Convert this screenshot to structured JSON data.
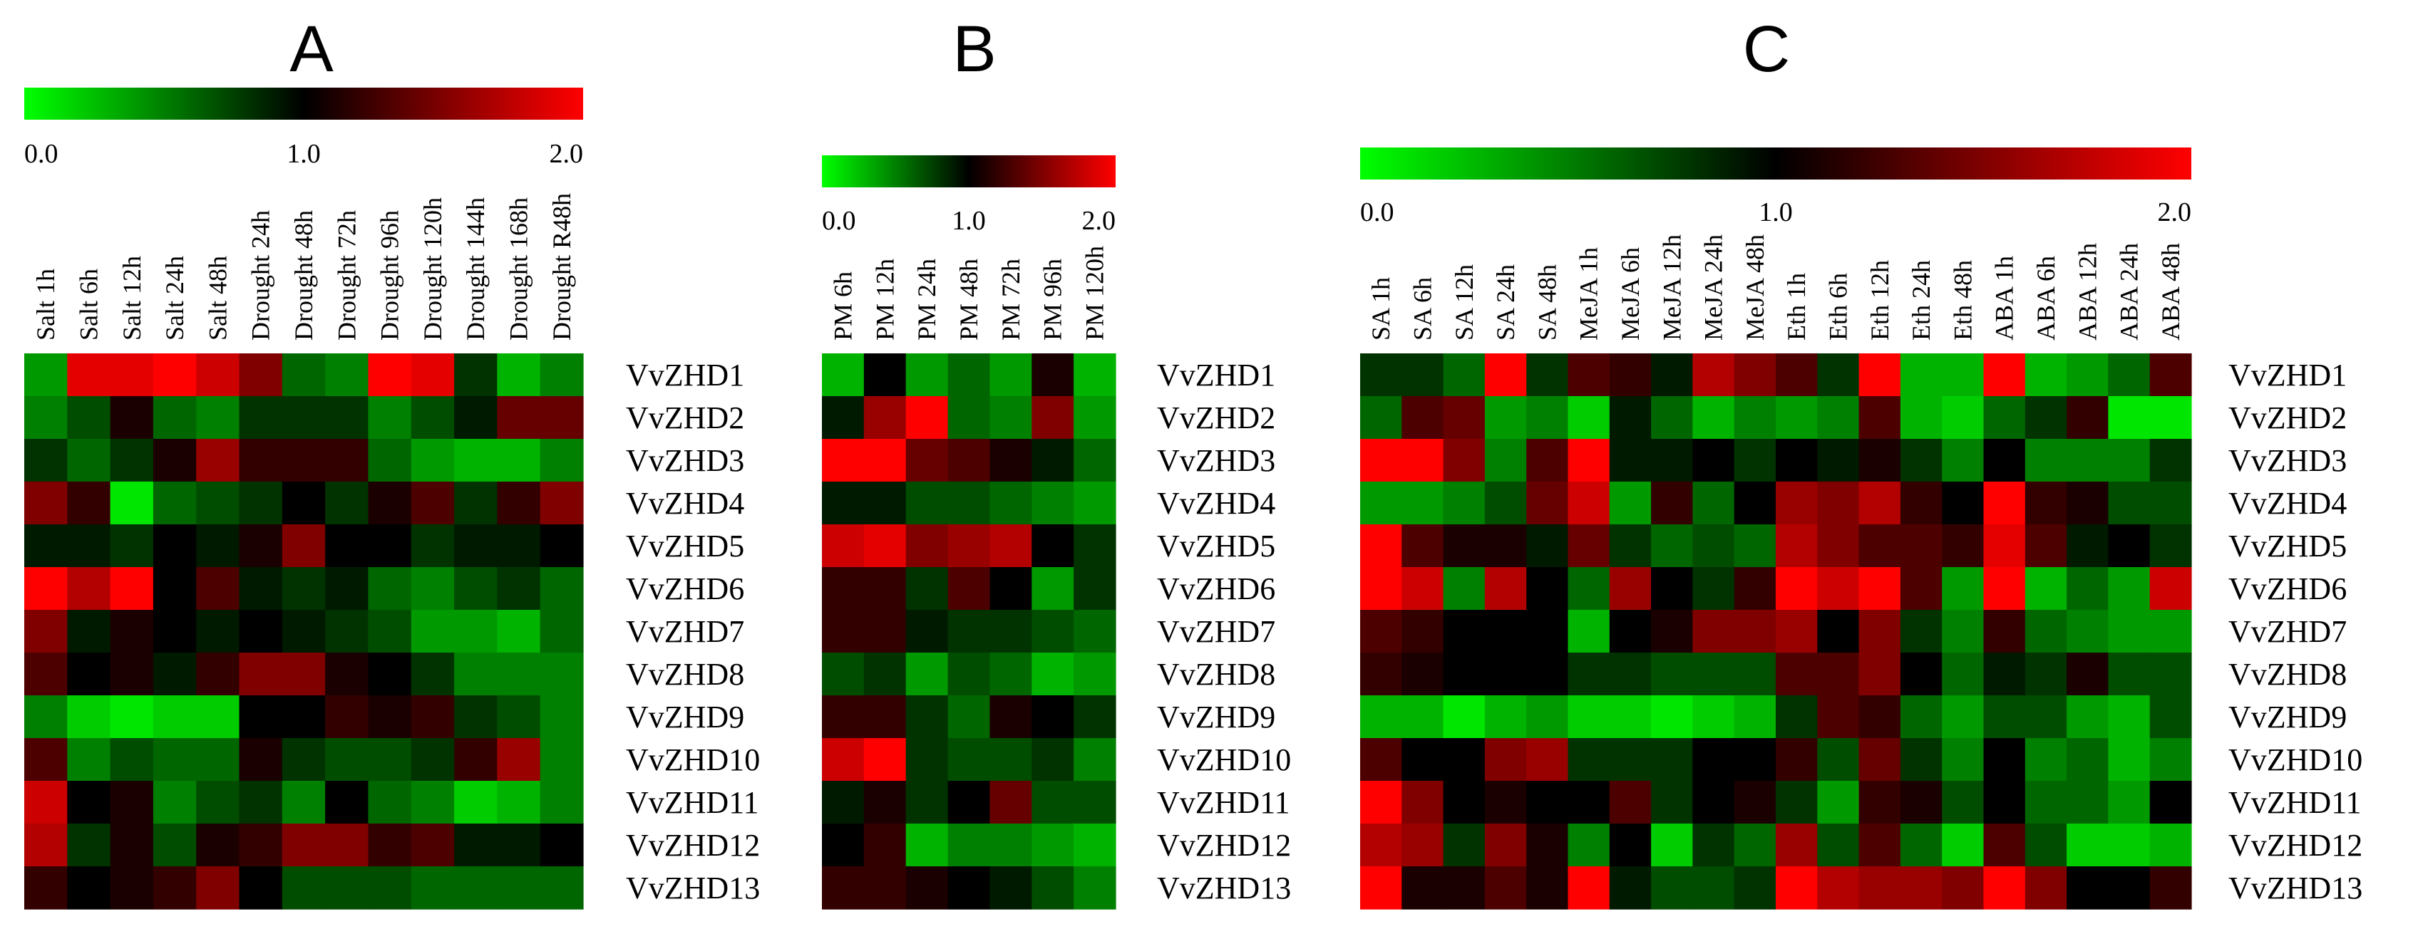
{
  "chart_data": [
    {
      "type": "heatmap",
      "title": "A",
      "colorbar": {
        "min": 0.0,
        "mid": 1.0,
        "max": 2.0,
        "ticks": [
          "0.0",
          "1.0",
          "2.0"
        ],
        "colors": [
          "#00ff00",
          "#000000",
          "#ff0000"
        ]
      },
      "x": [
        "Salt 1h",
        "Salt 6h",
        "Salt 12h",
        "Salt 24h",
        "Salt 48h",
        "Drought 24h",
        "Drought 48h",
        "Drought 72h",
        "Drought 96h",
        "Drought 120h",
        "Drought 144h",
        "Drought 168h",
        "Drought R48h"
      ],
      "y": [
        "VvZHD1",
        "VvZHD2",
        "VvZHD3",
        "VvZHD4",
        "VvZHD5",
        "VvZHD6",
        "VvZHD7",
        "VvZHD8",
        "VvZHD9",
        "VvZHD10",
        "VvZHD11",
        "VvZHD12",
        "VvZHD13"
      ],
      "values": [
        [
          0.4,
          1.9,
          1.9,
          2.0,
          1.8,
          1.5,
          0.6,
          0.5,
          2.0,
          1.9,
          0.8,
          0.3,
          0.5
        ],
        [
          0.5,
          0.7,
          1.1,
          0.6,
          0.5,
          0.8,
          0.8,
          0.8,
          0.5,
          0.7,
          0.9,
          1.4,
          1.4
        ],
        [
          0.8,
          0.6,
          0.8,
          1.1,
          1.6,
          1.2,
          1.2,
          1.2,
          0.6,
          0.4,
          0.3,
          0.3,
          0.5
        ],
        [
          1.5,
          1.2,
          0.1,
          0.6,
          0.7,
          0.8,
          1.0,
          0.8,
          1.1,
          1.3,
          0.8,
          1.2,
          1.5
        ],
        [
          0.9,
          0.9,
          0.8,
          1.0,
          0.9,
          1.1,
          1.5,
          1.0,
          1.0,
          0.8,
          0.9,
          0.9,
          1.0
        ],
        [
          2.0,
          1.7,
          2.0,
          1.0,
          1.3,
          0.9,
          0.8,
          0.9,
          0.6,
          0.5,
          0.7,
          0.8,
          0.6
        ],
        [
          1.5,
          0.9,
          1.1,
          1.0,
          0.9,
          1.0,
          0.9,
          0.8,
          0.7,
          0.4,
          0.4,
          0.3,
          0.6
        ],
        [
          1.3,
          1.0,
          1.1,
          0.9,
          1.2,
          1.5,
          1.5,
          1.1,
          1.0,
          0.8,
          0.5,
          0.5,
          0.5
        ],
        [
          0.5,
          0.2,
          0.1,
          0.2,
          0.2,
          1.0,
          1.0,
          1.2,
          1.1,
          1.2,
          0.8,
          0.7,
          0.5
        ],
        [
          1.3,
          0.5,
          0.7,
          0.6,
          0.6,
          1.1,
          0.8,
          0.7,
          0.7,
          0.8,
          1.2,
          1.6,
          0.5
        ],
        [
          1.8,
          1.0,
          1.1,
          0.5,
          0.7,
          0.8,
          0.5,
          1.0,
          0.6,
          0.5,
          0.2,
          0.3,
          0.5
        ],
        [
          1.7,
          0.8,
          1.1,
          0.7,
          1.1,
          1.2,
          1.5,
          1.5,
          1.2,
          1.3,
          0.9,
          0.9,
          1.0
        ],
        [
          1.2,
          1.0,
          1.1,
          1.2,
          1.5,
          1.0,
          0.7,
          0.7,
          0.7,
          0.6,
          0.6,
          0.6,
          0.6
        ]
      ]
    },
    {
      "type": "heatmap",
      "title": "B",
      "colorbar": {
        "min": 0.0,
        "mid": 1.0,
        "max": 2.0,
        "ticks": [
          "0.0",
          "1.0",
          "2.0"
        ],
        "colors": [
          "#00ff00",
          "#000000",
          "#ff0000"
        ]
      },
      "x": [
        "PM 6h",
        "PM 12h",
        "PM 24h",
        "PM 48h",
        "PM 72h",
        "PM 96h",
        "PM 120h"
      ],
      "y": [
        "VvZHD1",
        "VvZHD2",
        "VvZHD3",
        "VvZHD4",
        "VvZHD5",
        "VvZHD6",
        "VvZHD7",
        "VvZHD8",
        "VvZHD9",
        "VvZHD10",
        "VvZHD11",
        "VvZHD12",
        "VvZHD13"
      ],
      "values": [
        [
          0.3,
          1.0,
          0.4,
          0.6,
          0.4,
          1.1,
          0.3
        ],
        [
          0.9,
          1.6,
          2.0,
          0.6,
          0.5,
          1.5,
          0.4
        ],
        [
          2.0,
          2.0,
          1.4,
          1.3,
          1.1,
          0.9,
          0.6
        ],
        [
          0.9,
          0.9,
          0.7,
          0.7,
          0.6,
          0.5,
          0.4
        ],
        [
          1.8,
          1.9,
          1.5,
          1.6,
          1.7,
          1.0,
          0.8
        ],
        [
          1.2,
          1.2,
          0.8,
          1.3,
          1.0,
          0.4,
          0.8
        ],
        [
          1.2,
          1.2,
          0.9,
          0.8,
          0.8,
          0.7,
          0.6
        ],
        [
          0.7,
          0.8,
          0.4,
          0.7,
          0.6,
          0.3,
          0.4
        ],
        [
          1.2,
          1.2,
          0.8,
          0.6,
          1.1,
          1.0,
          0.8
        ],
        [
          1.8,
          2.0,
          0.8,
          0.7,
          0.7,
          0.8,
          0.5
        ],
        [
          0.9,
          1.1,
          0.8,
          1.0,
          1.4,
          0.7,
          0.7
        ],
        [
          1.0,
          1.2,
          0.3,
          0.5,
          0.5,
          0.4,
          0.3
        ],
        [
          1.2,
          1.2,
          1.1,
          1.0,
          0.9,
          0.7,
          0.5
        ]
      ]
    },
    {
      "type": "heatmap",
      "title": "C",
      "colorbar": {
        "min": 0.0,
        "mid": 1.0,
        "max": 2.0,
        "ticks": [
          "0.0",
          "1.0",
          "2.0"
        ],
        "colors": [
          "#00ff00",
          "#000000",
          "#ff0000"
        ]
      },
      "x": [
        "SA 1h",
        "SA 6h",
        "SA 12h",
        "SA 24h",
        "SA 48h",
        "MeJA 1h",
        "MeJA 6h",
        "MeJA 12h",
        "MeJA 24h",
        "MeJA 48h",
        "Eth 1h",
        "Eth 6h",
        "Eth 12h",
        "Eth 24h",
        "Eth 48h",
        "ABA 1h",
        "ABA 6h",
        "ABA 12h",
        "ABA 24h",
        "ABA 48h"
      ],
      "y": [
        "VvZHD1",
        "VvZHD2",
        "VvZHD3",
        "VvZHD4",
        "VvZHD5",
        "VvZHD6",
        "VvZHD7",
        "VvZHD8",
        "VvZHD9",
        "VvZHD10",
        "VvZHD11",
        "VvZHD12",
        "VvZHD13"
      ],
      "values": [
        [
          0.8,
          0.8,
          0.6,
          2.0,
          0.8,
          1.3,
          1.2,
          0.9,
          1.7,
          1.5,
          1.3,
          0.8,
          2.0,
          0.3,
          0.3,
          2.0,
          0.3,
          0.4,
          0.6,
          1.3
        ],
        [
          0.6,
          1.3,
          1.4,
          0.4,
          0.5,
          0.2,
          0.9,
          0.6,
          0.3,
          0.5,
          0.4,
          0.5,
          1.3,
          0.3,
          0.2,
          0.6,
          0.8,
          1.2,
          0.1,
          0.1
        ],
        [
          2.0,
          2.0,
          1.5,
          0.5,
          1.3,
          2.0,
          0.9,
          0.9,
          1.0,
          0.8,
          1.0,
          0.9,
          1.1,
          0.8,
          0.5,
          1.0,
          0.5,
          0.5,
          0.5,
          0.8
        ],
        [
          0.4,
          0.4,
          0.5,
          0.7,
          1.4,
          1.8,
          0.4,
          1.2,
          0.6,
          1.0,
          1.6,
          1.5,
          1.7,
          1.2,
          1.0,
          2.0,
          1.2,
          1.1,
          0.7,
          0.7
        ],
        [
          2.0,
          1.3,
          1.1,
          1.1,
          0.9,
          1.4,
          0.8,
          0.6,
          0.7,
          0.6,
          1.7,
          1.5,
          1.3,
          1.3,
          1.2,
          1.9,
          1.3,
          0.9,
          1.0,
          0.8
        ],
        [
          2.0,
          1.8,
          0.5,
          1.7,
          1.0,
          0.6,
          1.6,
          1.0,
          0.8,
          1.2,
          2.0,
          1.8,
          2.0,
          1.3,
          0.4,
          2.0,
          0.3,
          0.6,
          0.4,
          1.8
        ],
        [
          1.3,
          1.2,
          1.0,
          1.0,
          1.0,
          0.3,
          1.0,
          1.1,
          1.5,
          1.5,
          1.6,
          1.0,
          1.5,
          0.8,
          0.5,
          1.2,
          0.6,
          0.5,
          0.4,
          0.4
        ],
        [
          1.2,
          1.1,
          1.0,
          1.0,
          1.0,
          0.8,
          0.8,
          0.7,
          0.7,
          0.7,
          1.3,
          1.3,
          1.5,
          1.0,
          0.6,
          0.9,
          0.8,
          1.1,
          0.7,
          0.7
        ],
        [
          0.3,
          0.3,
          0.1,
          0.3,
          0.4,
          0.2,
          0.2,
          0.1,
          0.2,
          0.3,
          0.8,
          1.3,
          1.2,
          0.6,
          0.4,
          0.7,
          0.7,
          0.4,
          0.3,
          0.7
        ],
        [
          1.3,
          1.0,
          1.0,
          1.5,
          1.6,
          0.8,
          0.8,
          0.8,
          1.0,
          1.0,
          1.2,
          0.7,
          1.4,
          0.8,
          0.5,
          1.0,
          0.5,
          0.6,
          0.3,
          0.5
        ],
        [
          2.0,
          1.5,
          1.0,
          1.1,
          1.0,
          1.0,
          1.3,
          0.8,
          1.0,
          1.1,
          0.8,
          0.4,
          1.2,
          1.1,
          0.7,
          1.0,
          0.6,
          0.6,
          0.4,
          1.0
        ],
        [
          1.7,
          1.6,
          0.8,
          1.5,
          1.1,
          0.5,
          1.0,
          0.2,
          0.8,
          0.6,
          1.6,
          0.7,
          1.3,
          0.6,
          0.2,
          1.3,
          0.7,
          0.2,
          0.2,
          0.3
        ],
        [
          2.0,
          1.1,
          1.1,
          1.3,
          1.1,
          2.0,
          0.9,
          0.7,
          0.7,
          0.8,
          2.0,
          1.7,
          1.6,
          1.6,
          1.5,
          2.0,
          1.5,
          1.0,
          1.0,
          1.2
        ]
      ]
    }
  ]
}
